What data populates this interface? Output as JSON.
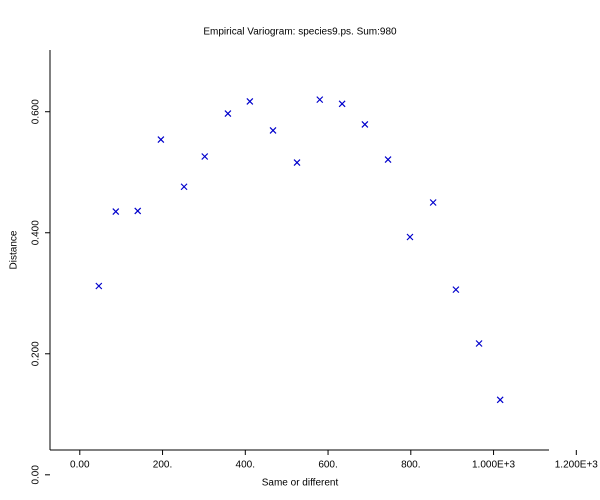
{
  "chart_data": {
    "type": "scatter",
    "title": "Empirical Variogram: species9.ps. Sum:980",
    "xlabel": "Same or different",
    "ylabel": "Distance",
    "color": "#0000cc",
    "x": [
      46,
      87,
      140,
      196,
      252,
      302,
      358,
      411,
      467,
      525,
      580,
      634,
      689,
      745,
      798,
      854,
      909,
      965,
      1016
    ],
    "values": [
      0.312,
      0.435,
      0.436,
      0.554,
      0.476,
      0.526,
      0.597,
      0.617,
      0.569,
      0.516,
      0.62,
      0.613,
      0.579,
      0.521,
      0.393,
      0.45,
      0.306,
      0.217,
      0.124
    ],
    "xlim": [
      -72,
      1134
    ],
    "ylim": [
      0.041,
      0.702
    ],
    "xticks": [
      {
        "value": 0,
        "label": "0.00"
      },
      {
        "value": 200,
        "label": "200."
      },
      {
        "value": 400,
        "label": "400."
      },
      {
        "value": 600,
        "label": "600."
      },
      {
        "value": 800,
        "label": "800."
      },
      {
        "value": 1000,
        "label": "1.000E+3"
      },
      {
        "value": 1200,
        "label": "1.200E+3"
      }
    ],
    "yticks": [
      {
        "value": 0,
        "label": "0.00"
      },
      {
        "value": 0.2,
        "label": "0.200"
      },
      {
        "value": 0.4,
        "label": "0.400"
      },
      {
        "value": 0.6,
        "label": "0.600"
      }
    ]
  }
}
